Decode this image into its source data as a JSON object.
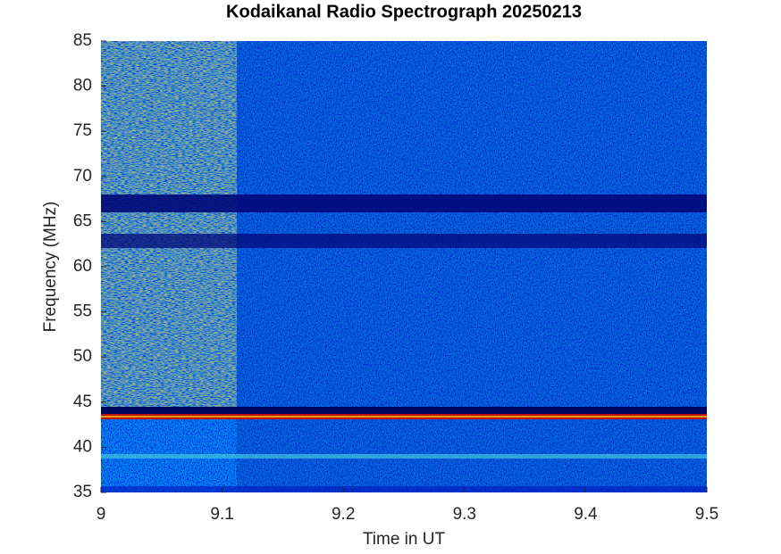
{
  "chart_data": {
    "type": "heatmap",
    "title": "Kodaikanal Radio Spectrograph  20250213",
    "xlabel": "Time in UT",
    "ylabel": "Frequency (MHz)",
    "xlim": [
      9,
      9.5
    ],
    "xticks": [
      9,
      9.1,
      9.2,
      9.3,
      9.4,
      9.5
    ],
    "ylim": [
      35,
      85
    ],
    "yticks": [
      35,
      40,
      45,
      50,
      55,
      60,
      65,
      70,
      75,
      80,
      85
    ]
  }
}
